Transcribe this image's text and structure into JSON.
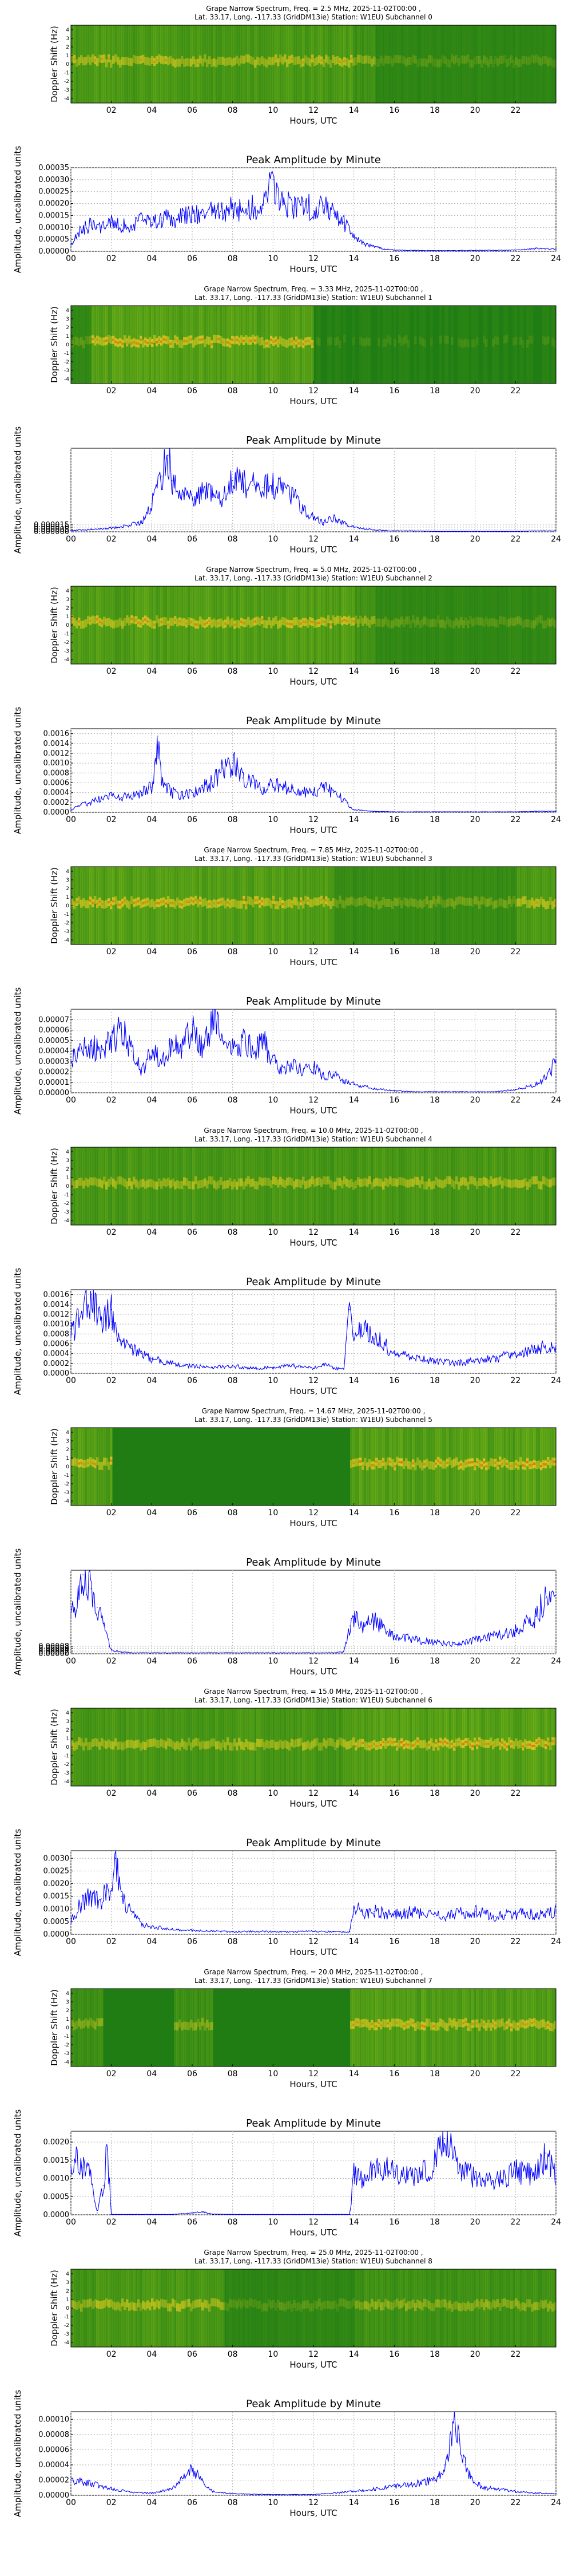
{
  "colors": {
    "line": "#0000ff",
    "grid": "#b0b0b0",
    "spec_bg": "#1f7d14",
    "spec_mid": "#9ecb1a",
    "spec_hot": "#f0d020",
    "spec_peak": "#e83018"
  },
  "common": {
    "spectrum_ylabel": "Doppler Shift (Hz)",
    "amplitude_ylabel": "Amplitude, uncalibrated units",
    "xlabel": "Hours, UTC",
    "amplitude_title": "Peak Amplitude by Minute",
    "location_line": "Lat.  33.17, Long. -117.33 (GridDM13ie) Station: W1EU)",
    "spectrum_ticks": [
      "4",
      "3",
      "2",
      "1",
      "0",
      "-1",
      "-2",
      "-3",
      "-4"
    ],
    "spectrum_xticks": [
      "02",
      "04",
      "06",
      "08",
      "10",
      "12",
      "14",
      "16",
      "18",
      "20",
      "22"
    ],
    "amplitude_xticks": [
      "00",
      "02",
      "04",
      "06",
      "08",
      "10",
      "12",
      "14",
      "16",
      "18",
      "20",
      "22",
      "24"
    ]
  },
  "chart_data": [
    {
      "type": "heatmap",
      "title": "Grape Narrow Spectrum, Freq. = 2.5 MHz, 2025-11-02T00:00 ,",
      "subtitle": "Subchannel 0",
      "xlabel": "Hours, UTC",
      "ylabel": "Doppler Shift (Hz)",
      "xlim": [
        0,
        24
      ],
      "ylim": [
        -4,
        4
      ]
    },
    {
      "type": "line",
      "title": "Peak Amplitude by Minute",
      "xlabel": "Hours, UTC",
      "ylabel": "Amplitude, uncalibrated units",
      "xlim": [
        0,
        24
      ],
      "ylim": [
        0,
        0.00035
      ],
      "yticks": [
        "0.00000",
        "0.00005",
        "0.00010",
        "0.00015",
        "0.00020",
        "0.00025",
        "0.00030",
        "0.00035"
      ],
      "x": [
        0,
        0.5,
        1,
        1.5,
        2,
        2.5,
        3,
        3.5,
        4,
        4.5,
        5,
        5.5,
        6,
        6.5,
        7,
        7.5,
        8,
        8.5,
        9,
        9.5,
        10,
        10.5,
        11,
        11.5,
        12,
        12.5,
        13,
        13.5,
        14,
        14.5,
        15,
        15.5,
        16,
        17,
        18,
        19,
        20,
        21,
        22,
        23,
        24
      ],
      "values": [
        3e-05,
        9e-05,
        0.00011,
        0.0001,
        0.00012,
        0.00011,
        0.0001,
        0.00013,
        0.00012,
        0.00014,
        0.00013,
        0.00015,
        0.00016,
        0.00015,
        0.00017,
        0.00016,
        0.00018,
        0.00017,
        0.00019,
        0.00018,
        0.0003,
        0.0002,
        0.00019,
        0.00021,
        0.00017,
        0.00019,
        0.00016,
        0.00012,
        6e-05,
        3e-05,
        2e-05,
        1e-05,
        5e-06,
        4e-06,
        3e-06,
        3e-06,
        4e-06,
        4e-06,
        5e-06,
        1.2e-05,
        1e-05
      ]
    },
    {
      "type": "heatmap",
      "title": "Grape Narrow Spectrum, Freq. = 3.33 MHz, 2025-11-02T00:00 ,",
      "subtitle": "Subchannel 1",
      "xlabel": "Hours, UTC",
      "ylabel": "Doppler Shift (Hz)",
      "xlim": [
        0,
        24
      ],
      "ylim": [
        -4,
        4
      ]
    },
    {
      "type": "line",
      "title": "Peak Amplitude by Minute",
      "xlabel": "Hours, UTC",
      "ylabel": "Amplitude, uncalibrated units",
      "xlim": [
        0,
        24
      ],
      "ylim": [
        0,
        0.00018
      ],
      "yticks": [
        "0.000000",
        "0.000005",
        "0.000010",
        "0.000015"
      ],
      "x": [
        0,
        1,
        2,
        3,
        3.5,
        4,
        4.5,
        4.8,
        5,
        5.5,
        6,
        6.5,
        7,
        7.5,
        8,
        8.5,
        9,
        9.5,
        10,
        10.5,
        11,
        11.5,
        12,
        12.5,
        13,
        13.5,
        14,
        15,
        16,
        17,
        18,
        19,
        20,
        21,
        22,
        23,
        24
      ],
      "values": [
        3e-06,
        5e-06,
        8e-06,
        1.5e-05,
        2e-05,
        6e-05,
        0.00012,
        0.000165,
        0.00011,
        8e-05,
        7e-05,
        9e-05,
        8e-05,
        7e-05,
        0.00011,
        0.000105,
        0.0001,
        9.5e-05,
        0.0001,
        9e-05,
        8e-05,
        5e-05,
        3e-05,
        2e-05,
        3e-05,
        2e-05,
        1e-05,
        4e-06,
        2e-06,
        2e-06,
        1e-06,
        1e-06,
        1e-06,
        1e-06,
        1e-06,
        2e-06,
        2e-06
      ]
    },
    {
      "type": "heatmap",
      "title": "Grape Narrow Spectrum, Freq. = 5.0 MHz, 2025-11-02T00:00 ,",
      "subtitle": "Subchannel 2",
      "xlabel": "Hours, UTC",
      "ylabel": "Doppler Shift (Hz)",
      "xlim": [
        0,
        24
      ],
      "ylim": [
        -4,
        4
      ]
    },
    {
      "type": "line",
      "title": "Peak Amplitude by Minute",
      "xlabel": "Hours, UTC",
      "ylabel": "Amplitude, uncalibrated units",
      "xlim": [
        0,
        24
      ],
      "ylim": [
        0,
        0.0017
      ],
      "yticks": [
        "0.0000",
        "0.0002",
        "0.0004",
        "0.0006",
        "0.0008",
        "0.0010",
        "0.0012",
        "0.0014",
        "0.0016"
      ],
      "x": [
        0,
        0.5,
        1,
        1.5,
        2,
        2.5,
        3,
        3.5,
        4,
        4.3,
        4.5,
        5,
        5.5,
        6,
        6.5,
        7,
        7.5,
        8,
        8.5,
        9,
        9.5,
        10,
        10.5,
        11,
        11.5,
        12,
        12.5,
        13,
        13.5,
        14,
        15,
        16,
        17,
        18,
        19,
        20,
        21,
        22,
        23,
        24
      ],
      "values": [
        5e-05,
        0.00015,
        0.0002,
        0.0003,
        0.00035,
        0.0003,
        0.00035,
        0.0004,
        0.0005,
        0.00155,
        0.0006,
        0.0004,
        0.00035,
        0.0004,
        0.0005,
        0.0006,
        0.0009,
        0.001,
        0.0007,
        0.0006,
        0.0005,
        0.0006,
        0.0005,
        0.0005,
        0.0004,
        0.0004,
        0.0005,
        0.0004,
        0.00025,
        5e-05,
        2e-05,
        1e-05,
        1e-05,
        1e-05,
        1e-05,
        1e-05,
        1e-05,
        1e-05,
        2e-05,
        2e-05
      ]
    },
    {
      "type": "heatmap",
      "title": "Grape Narrow Spectrum, Freq. = 7.85 MHz, 2025-11-02T00:00 ,",
      "subtitle": "Subchannel 3",
      "xlabel": "Hours, UTC",
      "ylabel": "Doppler Shift (Hz)",
      "xlim": [
        0,
        24
      ],
      "ylim": [
        -4,
        4
      ]
    },
    {
      "type": "line",
      "title": "Peak Amplitude by Minute",
      "xlabel": "Hours, UTC",
      "ylabel": "Amplitude, uncalibrated units",
      "xlim": [
        0,
        24
      ],
      "ylim": [
        0,
        8e-05
      ],
      "yticks": [
        "0.00000",
        "0.00001",
        "0.00002",
        "0.00003",
        "0.00004",
        "0.00005",
        "0.00006",
        "0.00007"
      ],
      "x": [
        0,
        0.5,
        1,
        1.5,
        2,
        2.5,
        3,
        3.5,
        4,
        4.5,
        5,
        5.5,
        6,
        6.5,
        7,
        7.5,
        8,
        8.5,
        9,
        9.5,
        10,
        10.5,
        11,
        11.5,
        12,
        12.5,
        13,
        13.5,
        14,
        15,
        16,
        17,
        18,
        19,
        20,
        21,
        22,
        23,
        23.5,
        24
      ],
      "values": [
        3e-05,
        4e-05,
        4.5e-05,
        4e-05,
        5e-05,
        6e-05,
        4e-05,
        2e-05,
        4e-05,
        3e-05,
        5e-05,
        4e-05,
        6.5e-05,
        4e-05,
        7e-05,
        5e-05,
        4e-05,
        5e-05,
        4e-05,
        5e-05,
        3e-05,
        2e-05,
        3e-05,
        2e-05,
        2.5e-05,
        1.5e-05,
        2e-05,
        1.2e-05,
        8e-06,
        4e-06,
        2e-06,
        1e-06,
        1e-06,
        1e-06,
        1e-06,
        1e-06,
        3e-06,
        8e-06,
        1.5e-05,
        3e-05
      ]
    },
    {
      "type": "heatmap",
      "title": "Grape Narrow Spectrum, Freq. = 10.0 MHz, 2025-11-02T00:00 ,",
      "subtitle": "Subchannel 4",
      "xlabel": "Hours, UTC",
      "ylabel": "Doppler Shift (Hz)",
      "xlim": [
        0,
        24
      ],
      "ylim": [
        -4,
        4
      ]
    },
    {
      "type": "line",
      "title": "Peak Amplitude by Minute",
      "xlabel": "Hours, UTC",
      "ylabel": "Amplitude, uncalibrated units",
      "xlim": [
        0,
        24
      ],
      "ylim": [
        0,
        0.0017
      ],
      "yticks": [
        "0.0000",
        "0.0002",
        "0.0004",
        "0.0006",
        "0.0008",
        "0.0010",
        "0.0012",
        "0.0014",
        "0.0016"
      ],
      "x": [
        0,
        0.5,
        1,
        1.5,
        2,
        2.5,
        3,
        3.5,
        4,
        5,
        6,
        7,
        8,
        9,
        10,
        11,
        12,
        12.5,
        13,
        13.5,
        13.8,
        14,
        14.5,
        15,
        15.5,
        16,
        17,
        18,
        19,
        20,
        21,
        22,
        23,
        24
      ],
      "values": [
        0.0008,
        0.0012,
        0.0016,
        0.0011,
        0.0013,
        0.0006,
        0.0005,
        0.0004,
        0.0003,
        0.0002,
        0.00015,
        0.00012,
        0.00015,
        0.0001,
        0.00012,
        0.00015,
        0.0001,
        0.0002,
        0.0001,
        8e-05,
        0.0013,
        0.0008,
        0.0009,
        0.0007,
        0.0006,
        0.0004,
        0.0003,
        0.00025,
        0.0002,
        0.00025,
        0.0003,
        0.0004,
        0.0005,
        0.0006
      ]
    },
    {
      "type": "heatmap",
      "title": "Grape Narrow Spectrum, Freq. = 14.67 MHz, 2025-11-02T00:00 ,",
      "subtitle": "Subchannel 5",
      "xlabel": "Hours, UTC",
      "ylabel": "Doppler Shift (Hz)",
      "xlim": [
        0,
        24
      ],
      "ylim": [
        -4,
        4
      ]
    },
    {
      "type": "line",
      "title": "Peak Amplitude by Minute",
      "xlabel": "Hours, UTC",
      "ylabel": "Amplitude, uncalibrated units",
      "xlim": [
        0,
        24
      ],
      "ylim": [
        0,
        0.0009
      ],
      "yticks": [
        "0.00000",
        "0.00002",
        "0.00004",
        "0.00006",
        "0.00008"
      ],
      "x": [
        0,
        0.3,
        0.6,
        1,
        1.3,
        1.6,
        2,
        2.5,
        3,
        4,
        6,
        8,
        10,
        12,
        13,
        13.5,
        13.8,
        14,
        14.5,
        15,
        16,
        17,
        18,
        19,
        20,
        21,
        22,
        23,
        23.5,
        24
      ],
      "values": [
        0.0004,
        0.0006,
        0.00085,
        0.0007,
        0.0005,
        0.0003,
        4e-05,
        2e-05,
        1e-05,
        1e-05,
        1e-05,
        1e-05,
        1e-05,
        1e-05,
        1e-05,
        2e-05,
        0.0003,
        0.0004,
        0.0003,
        0.00035,
        0.0002,
        0.00015,
        0.00012,
        0.0001,
        0.00015,
        0.0002,
        0.00025,
        0.0004,
        0.0006,
        0.00085
      ]
    },
    {
      "type": "heatmap",
      "title": "Grape Narrow Spectrum, Freq. = 15.0 MHz, 2025-11-02T00:00 ,",
      "subtitle": "Subchannel 6",
      "xlabel": "Hours, UTC",
      "ylabel": "Doppler Shift (Hz)",
      "xlim": [
        0,
        24
      ],
      "ylim": [
        -4,
        4
      ]
    },
    {
      "type": "line",
      "title": "Peak Amplitude by Minute",
      "xlabel": "Hours, UTC",
      "ylabel": "Amplitude, uncalibrated units",
      "xlim": [
        0,
        24
      ],
      "ylim": [
        0,
        0.0033
      ],
      "yticks": [
        "0.0000",
        "0.0005",
        "0.0010",
        "0.0015",
        "0.0020",
        "0.0025",
        "0.0030"
      ],
      "x": [
        0,
        0.5,
        1,
        1.5,
        2,
        2.2,
        2.5,
        3,
        3.5,
        4,
        5,
        6,
        7,
        8,
        9,
        10,
        11,
        12,
        13,
        13.8,
        14,
        14.5,
        15,
        16,
        17,
        18,
        19,
        20,
        21,
        22,
        23,
        24
      ],
      "values": [
        0.0005,
        0.0012,
        0.0015,
        0.0014,
        0.0018,
        0.003,
        0.0015,
        0.0008,
        0.0004,
        0.0003,
        0.0002,
        0.00015,
        0.00012,
        0.0001,
        0.00012,
        0.0001,
        0.0001,
        0.00012,
        0.0001,
        0.0001,
        0.0011,
        0.0008,
        0.0009,
        0.0008,
        0.0009,
        0.0007,
        0.0008,
        0.0009,
        0.0007,
        0.0008,
        0.0008,
        0.0009
      ]
    },
    {
      "type": "heatmap",
      "title": "Grape Narrow Spectrum, Freq. = 20.0 MHz, 2025-11-02T00:00 ,",
      "subtitle": "Subchannel 7",
      "xlabel": "Hours, UTC",
      "ylabel": "Doppler Shift (Hz)",
      "xlim": [
        0,
        24
      ],
      "ylim": [
        -4,
        4
      ]
    },
    {
      "type": "line",
      "title": "Peak Amplitude by Minute",
      "xlabel": "Hours, UTC",
      "ylabel": "Amplitude, uncalibrated units",
      "xlim": [
        0,
        24
      ],
      "ylim": [
        0,
        0.0023
      ],
      "yticks": [
        "0.0000",
        "0.0005",
        "0.0010",
        "0.0015",
        "0.0020"
      ],
      "x": [
        0,
        0.3,
        0.6,
        1,
        1.3,
        1.6,
        1.8,
        2,
        3,
        4,
        5,
        6,
        6.5,
        7,
        8,
        10,
        12,
        13,
        13.8,
        14,
        14.5,
        15,
        16,
        17,
        18,
        18.5,
        19,
        19.5,
        20,
        21,
        22,
        23,
        23.5,
        24
      ],
      "values": [
        0.0012,
        0.0015,
        0.0013,
        0.0011,
        5e-05,
        0.0008,
        0.0018,
        1e-05,
        1e-05,
        1e-05,
        1e-05,
        5e-05,
        8e-05,
        2e-05,
        1e-05,
        1e-05,
        1e-05,
        1e-05,
        1e-05,
        0.0011,
        0.0009,
        0.0013,
        0.0012,
        0.001,
        0.0014,
        0.0021,
        0.0015,
        0.0012,
        0.001,
        0.0009,
        0.0012,
        0.0011,
        0.0017,
        0.001
      ]
    },
    {
      "type": "heatmap",
      "title": "Grape Narrow Spectrum, Freq. = 25.0 MHz, 2025-11-02T00:00 ,",
      "subtitle": "Subchannel 8",
      "xlabel": "Hours, UTC",
      "ylabel": "Doppler Shift (Hz)",
      "xlim": [
        0,
        24
      ],
      "ylim": [
        -4,
        4
      ]
    },
    {
      "type": "line",
      "title": "Peak Amplitude by Minute",
      "xlabel": "Hours, UTC",
      "ylabel": "Amplitude, uncalibrated units",
      "xlim": [
        0,
        24
      ],
      "ylim": [
        0,
        0.00011
      ],
      "yticks": [
        "0.00000",
        "0.00002",
        "0.00004",
        "0.00006",
        "0.00008",
        "0.00010"
      ],
      "x": [
        0,
        0.5,
        1,
        1.5,
        2,
        3,
        4,
        5,
        5.5,
        6,
        6.5,
        7,
        8,
        10,
        12,
        14,
        15,
        16,
        17,
        18,
        18.5,
        19,
        19.2,
        19.5,
        20,
        20.5,
        21,
        22,
        23,
        24
      ],
      "values": [
        2e-05,
        1.8e-05,
        1.5e-05,
        1.2e-05,
        8e-06,
        4e-06,
        3e-06,
        8e-06,
        2e-05,
        3.5e-05,
        2e-05,
        5e-06,
        2e-06,
        1e-06,
        1e-06,
        5e-06,
        8e-06,
        1.2e-05,
        1.5e-05,
        2e-05,
        4e-05,
        0.0001,
        8e-05,
        4e-05,
        1.5e-05,
        1e-05,
        8e-06,
        5e-06,
        3e-06,
        2e-06
      ]
    }
  ]
}
